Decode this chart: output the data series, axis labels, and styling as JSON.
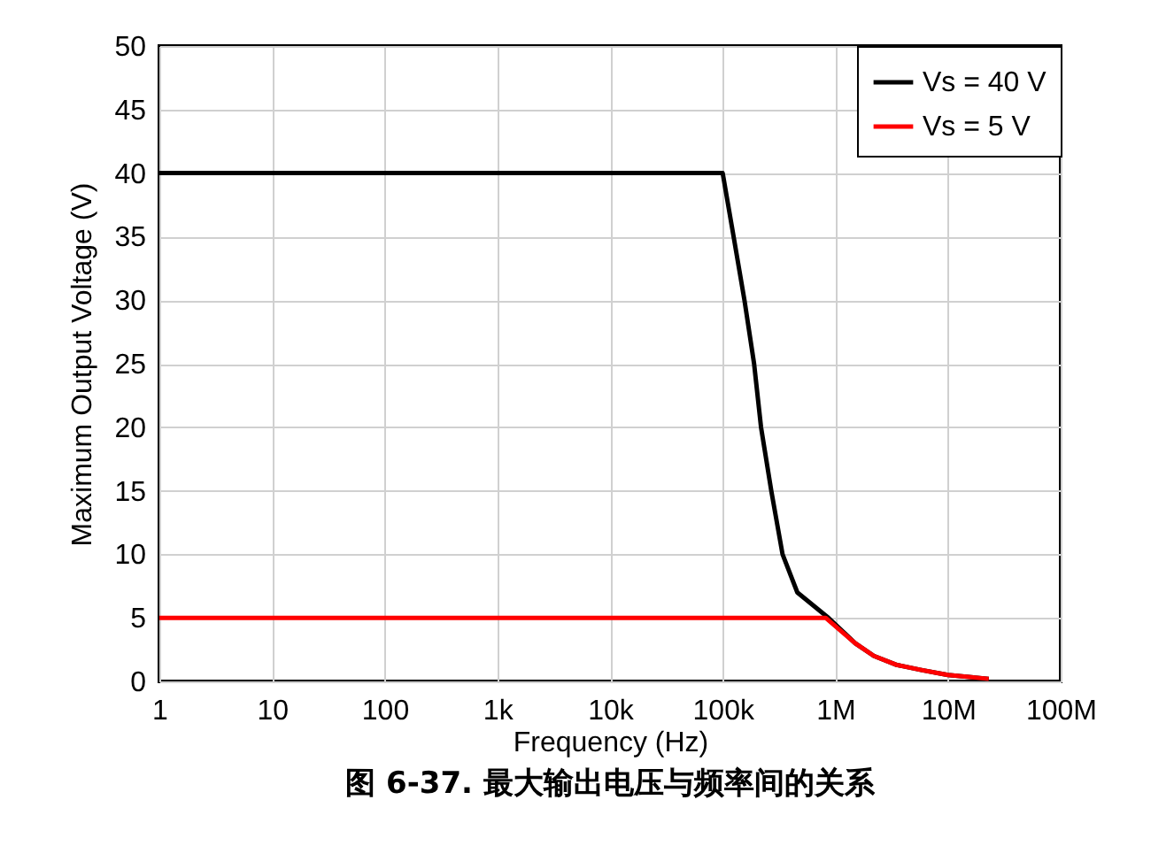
{
  "chart_data": {
    "type": "line",
    "title": "图 6-37. 最大输出电压与频率间的关系",
    "xlabel": "Frequency (Hz)",
    "ylabel": "Maximum Output Voltage (V)",
    "series": [
      {
        "name": "Vs = 40 V",
        "color": "#000000",
        "x": [
          1,
          100000,
          125000,
          156000,
          190000,
          219000,
          270000,
          340000,
          460000,
          870000,
          1500000,
          2200000,
          3500000,
          5800000,
          10000000,
          23000000
        ],
        "values": [
          40,
          40,
          35,
          30,
          25,
          20,
          15,
          10,
          7,
          5,
          3,
          2,
          1.3,
          0.9,
          0.5,
          0.2
        ]
      },
      {
        "name": "Vs = 5 V",
        "color": "#ff0000",
        "x": [
          1,
          820000,
          1500000,
          2200000,
          3500000,
          5800000,
          10000000,
          23000000
        ],
        "values": [
          5,
          5,
          3,
          2,
          1.3,
          0.9,
          0.5,
          0.2
        ]
      }
    ],
    "log": "x",
    "xlim": [
      1,
      100000000
    ],
    "xticks": [
      1,
      10,
      100,
      {
        "value": 1000,
        "label": "1k"
      },
      {
        "value": 10000,
        "label": "10k"
      },
      {
        "value": 100000,
        "label": "100k"
      },
      {
        "value": 1000000,
        "label": "1M"
      },
      {
        "value": 10000000,
        "label": "10M"
      },
      {
        "value": 100000000,
        "label": "100M"
      }
    ],
    "ylim": [
      0,
      50
    ],
    "yticks": [
      0,
      5,
      10,
      15,
      20,
      25,
      30,
      35,
      40,
      45,
      50
    ],
    "grid": true,
    "legend": "top right",
    "line_style": "solid"
  }
}
